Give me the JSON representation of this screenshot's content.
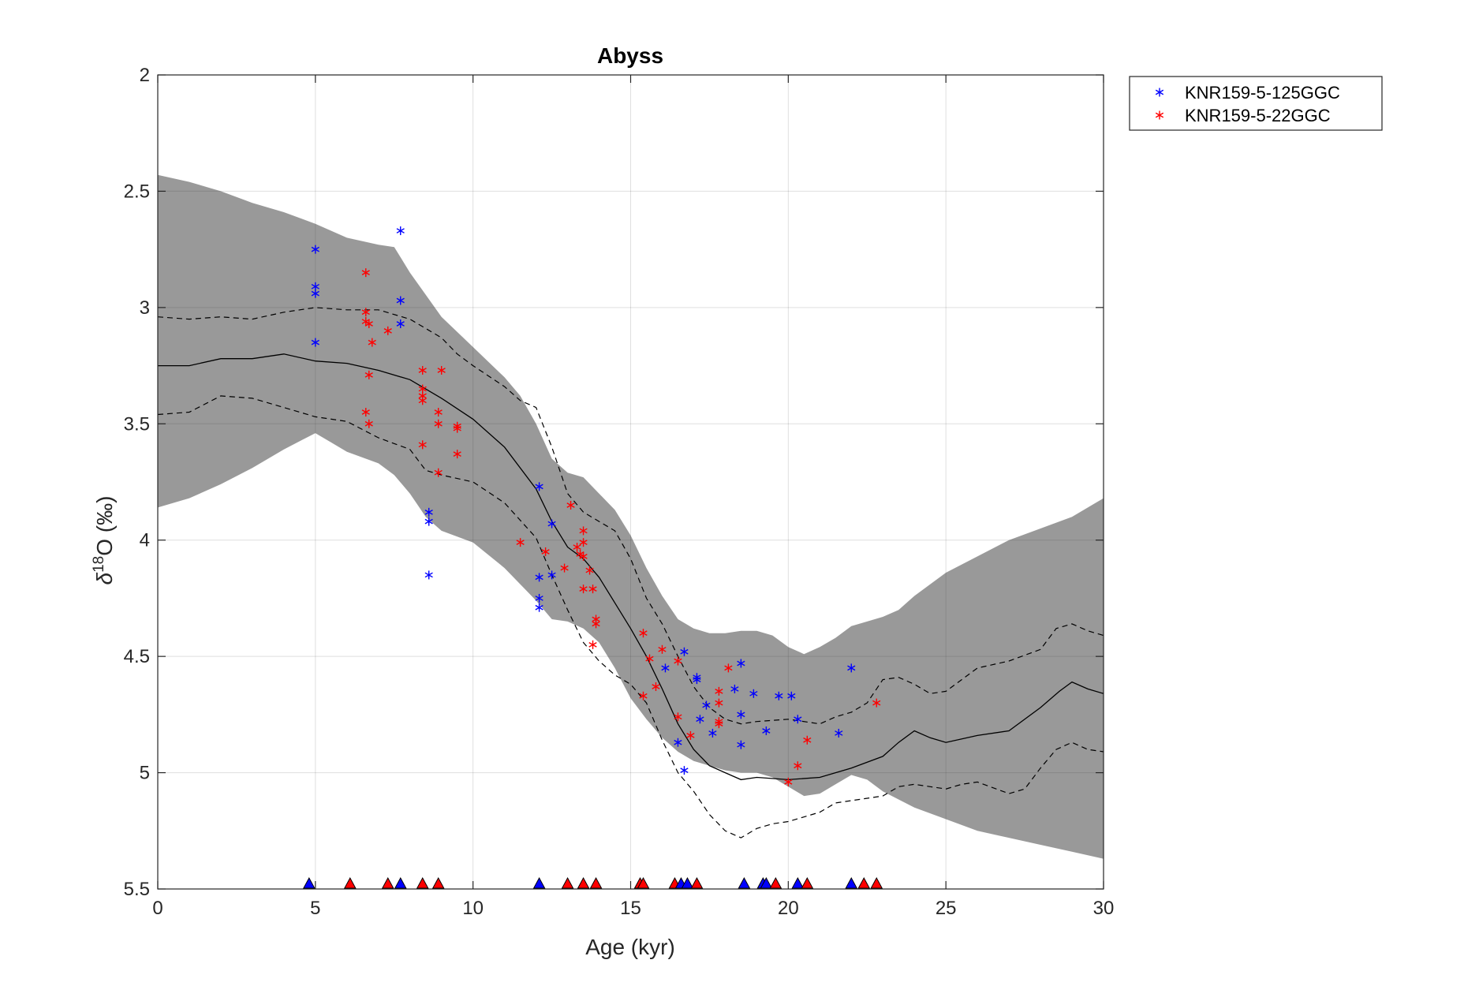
{
  "chart_data": {
    "type": "scatter",
    "title": "Abyss",
    "xlabel": "Age (kyr)",
    "ylabel_parts": [
      "δ",
      "18",
      "O (‰)"
    ],
    "xlim": [
      0,
      30
    ],
    "ylim": [
      2,
      5.5
    ],
    "y_reversed": true,
    "x_ticks": [
      0,
      5,
      10,
      15,
      20,
      25,
      30
    ],
    "y_ticks": [
      2,
      2.5,
      3,
      3.5,
      4,
      4.5,
      5,
      5.5
    ],
    "x_tick_labels": [
      "0",
      "5",
      "10",
      "15",
      "20",
      "25",
      "30"
    ],
    "y_tick_labels": [
      "2",
      "2.5",
      "3",
      "3.5",
      "4",
      "4.5",
      "5",
      "5.5"
    ],
    "grid": true,
    "legend_position": "outside-top-right",
    "colors": {
      "blue_series": "#0000ff",
      "red_series": "#ff0000",
      "band": "#999999",
      "median": "#000000"
    },
    "series": [
      {
        "name": "KNR159-5-125GGC",
        "color": "#0000ff",
        "marker": "asterisk",
        "points": [
          [
            5.0,
            2.75
          ],
          [
            5.0,
            2.91
          ],
          [
            5.0,
            2.94
          ],
          [
            5.0,
            3.15
          ],
          [
            7.7,
            2.67
          ],
          [
            7.7,
            2.97
          ],
          [
            7.7,
            3.07
          ],
          [
            8.6,
            3.88
          ],
          [
            8.6,
            3.92
          ],
          [
            8.6,
            4.15
          ],
          [
            12.1,
            3.77
          ],
          [
            12.1,
            4.16
          ],
          [
            12.1,
            4.25
          ],
          [
            12.1,
            4.29
          ],
          [
            12.5,
            3.93
          ],
          [
            12.5,
            4.15
          ],
          [
            16.1,
            4.55
          ],
          [
            16.5,
            4.87
          ],
          [
            16.7,
            4.48
          ],
          [
            16.7,
            4.99
          ],
          [
            17.1,
            4.59
          ],
          [
            17.1,
            4.6
          ],
          [
            17.2,
            4.77
          ],
          [
            17.4,
            4.71
          ],
          [
            17.6,
            4.83
          ],
          [
            18.3,
            4.64
          ],
          [
            18.5,
            4.53
          ],
          [
            18.5,
            4.75
          ],
          [
            18.5,
            4.88
          ],
          [
            18.9,
            4.66
          ],
          [
            19.3,
            4.82
          ],
          [
            19.7,
            4.67
          ],
          [
            20.1,
            4.67
          ],
          [
            20.3,
            4.77
          ],
          [
            21.6,
            4.83
          ],
          [
            22.0,
            4.55
          ]
        ]
      },
      {
        "name": "KNR159-5-22GGC",
        "color": "#ff0000",
        "marker": "asterisk",
        "points": [
          [
            6.6,
            2.85
          ],
          [
            6.6,
            3.02
          ],
          [
            6.6,
            3.06
          ],
          [
            6.7,
            3.07
          ],
          [
            6.8,
            3.15
          ],
          [
            6.7,
            3.29
          ],
          [
            6.6,
            3.45
          ],
          [
            6.7,
            3.5
          ],
          [
            7.3,
            3.1
          ],
          [
            8.4,
            3.27
          ],
          [
            8.4,
            3.35
          ],
          [
            8.4,
            3.38
          ],
          [
            8.4,
            3.4
          ],
          [
            8.4,
            3.59
          ],
          [
            8.9,
            3.45
          ],
          [
            8.9,
            3.71
          ],
          [
            9.0,
            3.27
          ],
          [
            8.9,
            3.5
          ],
          [
            9.5,
            3.51
          ],
          [
            9.5,
            3.52
          ],
          [
            9.5,
            3.63
          ],
          [
            11.5,
            4.01
          ],
          [
            12.3,
            4.05
          ],
          [
            12.9,
            4.12
          ],
          [
            13.1,
            3.85
          ],
          [
            13.3,
            4.03
          ],
          [
            13.4,
            4.06
          ],
          [
            13.5,
            3.96
          ],
          [
            13.5,
            4.01
          ],
          [
            13.5,
            4.07
          ],
          [
            13.5,
            4.21
          ],
          [
            13.7,
            4.13
          ],
          [
            13.8,
            4.21
          ],
          [
            13.8,
            4.45
          ],
          [
            13.9,
            4.34
          ],
          [
            13.9,
            4.36
          ],
          [
            15.4,
            4.4
          ],
          [
            15.4,
            4.67
          ],
          [
            15.6,
            4.51
          ],
          [
            15.8,
            4.63
          ],
          [
            16.0,
            4.47
          ],
          [
            16.5,
            4.52
          ],
          [
            16.5,
            4.76
          ],
          [
            16.9,
            4.84
          ],
          [
            17.8,
            4.65
          ],
          [
            17.8,
            4.7
          ],
          [
            17.8,
            4.78
          ],
          [
            17.8,
            4.79
          ],
          [
            18.1,
            4.55
          ],
          [
            20.0,
            5.04
          ],
          [
            20.3,
            4.97
          ],
          [
            20.6,
            4.86
          ],
          [
            22.8,
            4.7
          ]
        ]
      }
    ],
    "median_curve": [
      [
        0,
        3.25
      ],
      [
        1.0,
        3.25
      ],
      [
        2.0,
        3.22
      ],
      [
        3.0,
        3.22
      ],
      [
        4.0,
        3.2
      ],
      [
        5.0,
        3.23
      ],
      [
        6.0,
        3.24
      ],
      [
        7.0,
        3.27
      ],
      [
        8.0,
        3.31
      ],
      [
        9.0,
        3.39
      ],
      [
        10.0,
        3.48
      ],
      [
        11.0,
        3.6
      ],
      [
        12.0,
        3.78
      ],
      [
        12.5,
        3.92
      ],
      [
        13.0,
        4.03
      ],
      [
        13.5,
        4.08
      ],
      [
        14.0,
        4.16
      ],
      [
        14.5,
        4.27
      ],
      [
        15.0,
        4.38
      ],
      [
        15.5,
        4.5
      ],
      [
        16.0,
        4.64
      ],
      [
        16.5,
        4.79
      ],
      [
        17.0,
        4.9
      ],
      [
        17.5,
        4.97
      ],
      [
        18.0,
        5.0
      ],
      [
        18.5,
        5.03
      ],
      [
        19.0,
        5.02
      ],
      [
        20.0,
        5.03
      ],
      [
        21.0,
        5.02
      ],
      [
        22.0,
        4.98
      ],
      [
        23.0,
        4.93
      ],
      [
        23.5,
        4.87
      ],
      [
        24.0,
        4.82
      ],
      [
        24.5,
        4.85
      ],
      [
        25.0,
        4.87
      ],
      [
        26.0,
        4.84
      ],
      [
        27.0,
        4.82
      ],
      [
        28.0,
        4.72
      ],
      [
        28.6,
        4.65
      ],
      [
        29.0,
        4.61
      ],
      [
        29.5,
        4.64
      ],
      [
        30.0,
        4.66
      ]
    ],
    "upper_dashed": [
      [
        0,
        3.04
      ],
      [
        1.0,
        3.05
      ],
      [
        2.0,
        3.04
      ],
      [
        3.0,
        3.05
      ],
      [
        4.0,
        3.02
      ],
      [
        5.0,
        3.0
      ],
      [
        6.0,
        3.01
      ],
      [
        7.0,
        3.01
      ],
      [
        8.0,
        3.05
      ],
      [
        9.0,
        3.13
      ],
      [
        9.5,
        3.2
      ],
      [
        10.0,
        3.25
      ],
      [
        11.0,
        3.34
      ],
      [
        11.5,
        3.4
      ],
      [
        12.0,
        3.43
      ],
      [
        12.5,
        3.6
      ],
      [
        13.0,
        3.8
      ],
      [
        13.5,
        3.88
      ],
      [
        14.0,
        3.92
      ],
      [
        14.5,
        3.96
      ],
      [
        15.0,
        4.08
      ],
      [
        15.5,
        4.25
      ],
      [
        16.0,
        4.36
      ],
      [
        16.5,
        4.5
      ],
      [
        17.0,
        4.63
      ],
      [
        17.5,
        4.72
      ],
      [
        18.0,
        4.77
      ],
      [
        18.5,
        4.79
      ],
      [
        19.0,
        4.78
      ],
      [
        20.0,
        4.77
      ],
      [
        21.0,
        4.79
      ],
      [
        21.5,
        4.76
      ],
      [
        22.0,
        4.74
      ],
      [
        22.5,
        4.7
      ],
      [
        23.0,
        4.6
      ],
      [
        23.5,
        4.59
      ],
      [
        24.0,
        4.62
      ],
      [
        24.5,
        4.66
      ],
      [
        25.0,
        4.65
      ],
      [
        26.0,
        4.55
      ],
      [
        27.0,
        4.52
      ],
      [
        28.0,
        4.47
      ],
      [
        28.5,
        4.38
      ],
      [
        29.0,
        4.36
      ],
      [
        29.5,
        4.39
      ],
      [
        30.0,
        4.41
      ]
    ],
    "lower_dashed": [
      [
        0,
        3.46
      ],
      [
        1.0,
        3.45
      ],
      [
        2.0,
        3.38
      ],
      [
        3.0,
        3.39
      ],
      [
        4.0,
        3.43
      ],
      [
        5.0,
        3.47
      ],
      [
        6.0,
        3.49
      ],
      [
        7.0,
        3.56
      ],
      [
        8.0,
        3.61
      ],
      [
        8.5,
        3.7
      ],
      [
        9.0,
        3.72
      ],
      [
        10.0,
        3.75
      ],
      [
        11.0,
        3.84
      ],
      [
        12.0,
        3.99
      ],
      [
        12.5,
        4.15
      ],
      [
        13.0,
        4.3
      ],
      [
        13.5,
        4.44
      ],
      [
        14.0,
        4.52
      ],
      [
        14.5,
        4.58
      ],
      [
        15.0,
        4.62
      ],
      [
        15.5,
        4.7
      ],
      [
        16.0,
        4.86
      ],
      [
        16.5,
        5.0
      ],
      [
        17.0,
        5.08
      ],
      [
        17.5,
        5.18
      ],
      [
        18.0,
        5.25
      ],
      [
        18.5,
        5.28
      ],
      [
        19.0,
        5.24
      ],
      [
        19.5,
        5.22
      ],
      [
        20.0,
        5.21
      ],
      [
        21.0,
        5.17
      ],
      [
        21.5,
        5.13
      ],
      [
        22.0,
        5.12
      ],
      [
        23.0,
        5.1
      ],
      [
        23.5,
        5.06
      ],
      [
        24.0,
        5.05
      ],
      [
        24.5,
        5.06
      ],
      [
        25.0,
        5.07
      ],
      [
        25.5,
        5.05
      ],
      [
        26.0,
        5.04
      ],
      [
        27.0,
        5.09
      ],
      [
        27.5,
        5.07
      ],
      [
        28.0,
        4.98
      ],
      [
        28.5,
        4.9
      ],
      [
        29.0,
        4.87
      ],
      [
        29.5,
        4.9
      ],
      [
        30.0,
        4.91
      ]
    ],
    "band_upper": [
      [
        0,
        2.43
      ],
      [
        1.0,
        2.46
      ],
      [
        2.0,
        2.5
      ],
      [
        3.0,
        2.55
      ],
      [
        4.0,
        2.59
      ],
      [
        5.0,
        2.64
      ],
      [
        6.0,
        2.7
      ],
      [
        7.0,
        2.73
      ],
      [
        7.5,
        2.74
      ],
      [
        8.0,
        2.85
      ],
      [
        9.0,
        3.04
      ],
      [
        10.0,
        3.17
      ],
      [
        11.0,
        3.3
      ],
      [
        11.5,
        3.38
      ],
      [
        12.0,
        3.5
      ],
      [
        12.5,
        3.65
      ],
      [
        13.0,
        3.71
      ],
      [
        13.5,
        3.73
      ],
      [
        14.0,
        3.8
      ],
      [
        14.5,
        3.87
      ],
      [
        15.0,
        3.98
      ],
      [
        15.5,
        4.12
      ],
      [
        16.0,
        4.24
      ],
      [
        16.5,
        4.34
      ],
      [
        17.0,
        4.38
      ],
      [
        17.5,
        4.4
      ],
      [
        18.0,
        4.4
      ],
      [
        18.5,
        4.39
      ],
      [
        19.0,
        4.39
      ],
      [
        19.5,
        4.41
      ],
      [
        20.0,
        4.46
      ],
      [
        20.5,
        4.49
      ],
      [
        21.0,
        4.46
      ],
      [
        21.5,
        4.42
      ],
      [
        22.0,
        4.37
      ],
      [
        22.5,
        4.35
      ],
      [
        23.0,
        4.33
      ],
      [
        23.5,
        4.3
      ],
      [
        24.0,
        4.24
      ],
      [
        25.0,
        4.14
      ],
      [
        26.0,
        4.07
      ],
      [
        27.0,
        4.0
      ],
      [
        28.0,
        3.95
      ],
      [
        29.0,
        3.9
      ],
      [
        30.0,
        3.82
      ]
    ],
    "band_lower": [
      [
        0,
        3.86
      ],
      [
        1.0,
        3.82
      ],
      [
        2.0,
        3.76
      ],
      [
        3.0,
        3.69
      ],
      [
        4.0,
        3.61
      ],
      [
        5.0,
        3.54
      ],
      [
        5.5,
        3.58
      ],
      [
        6.0,
        3.62
      ],
      [
        7.0,
        3.67
      ],
      [
        7.5,
        3.72
      ],
      [
        8.0,
        3.8
      ],
      [
        8.5,
        3.9
      ],
      [
        9.0,
        3.96
      ],
      [
        10.0,
        4.01
      ],
      [
        11.0,
        4.12
      ],
      [
        12.0,
        4.26
      ],
      [
        12.5,
        4.34
      ],
      [
        13.0,
        4.35
      ],
      [
        13.5,
        4.38
      ],
      [
        14.0,
        4.44
      ],
      [
        14.5,
        4.55
      ],
      [
        15.0,
        4.68
      ],
      [
        15.5,
        4.77
      ],
      [
        16.0,
        4.85
      ],
      [
        16.5,
        4.91
      ],
      [
        17.0,
        4.95
      ],
      [
        17.5,
        4.97
      ],
      [
        18.0,
        4.99
      ],
      [
        18.5,
        5.0
      ],
      [
        19.0,
        5.0
      ],
      [
        19.5,
        5.02
      ],
      [
        20.0,
        5.06
      ],
      [
        20.5,
        5.1
      ],
      [
        21.0,
        5.09
      ],
      [
        21.5,
        5.05
      ],
      [
        22.0,
        5.01
      ],
      [
        22.5,
        5.03
      ],
      [
        23.0,
        5.08
      ],
      [
        24.0,
        5.15
      ],
      [
        25.0,
        5.2
      ],
      [
        26.0,
        5.25
      ],
      [
        27.0,
        5.28
      ],
      [
        28.0,
        5.31
      ],
      [
        29.0,
        5.34
      ],
      [
        30.0,
        5.37
      ]
    ],
    "date_markers": [
      {
        "x": 4.8,
        "color": "#0000ff"
      },
      {
        "x": 6.1,
        "color": "#ff0000"
      },
      {
        "x": 7.3,
        "color": "#ff0000"
      },
      {
        "x": 7.7,
        "color": "#0000ff"
      },
      {
        "x": 8.4,
        "color": "#ff0000"
      },
      {
        "x": 8.9,
        "color": "#ff0000"
      },
      {
        "x": 12.1,
        "color": "#0000ff"
      },
      {
        "x": 13.0,
        "color": "#ff0000"
      },
      {
        "x": 13.5,
        "color": "#ff0000"
      },
      {
        "x": 13.9,
        "color": "#ff0000"
      },
      {
        "x": 15.3,
        "color": "#ff0000"
      },
      {
        "x": 15.4,
        "color": "#ff0000"
      },
      {
        "x": 16.4,
        "color": "#ff0000"
      },
      {
        "x": 16.6,
        "color": "#0000ff"
      },
      {
        "x": 16.8,
        "color": "#0000ff"
      },
      {
        "x": 17.1,
        "color": "#ff0000"
      },
      {
        "x": 18.6,
        "color": "#0000ff"
      },
      {
        "x": 19.2,
        "color": "#0000ff"
      },
      {
        "x": 19.3,
        "color": "#0000ff"
      },
      {
        "x": 19.6,
        "color": "#ff0000"
      },
      {
        "x": 20.3,
        "color": "#0000ff"
      },
      {
        "x": 20.6,
        "color": "#ff0000"
      },
      {
        "x": 22.0,
        "color": "#0000ff"
      },
      {
        "x": 22.4,
        "color": "#ff0000"
      },
      {
        "x": 22.8,
        "color": "#ff0000"
      }
    ]
  }
}
